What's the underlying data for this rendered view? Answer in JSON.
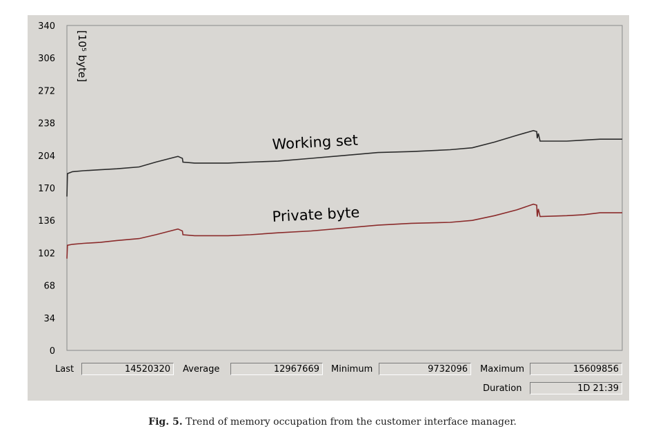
{
  "chart_data": {
    "type": "line",
    "y_unit_label": "[10⁵ byte]",
    "y_ticks": [
      0,
      34,
      68,
      102,
      136,
      170,
      204,
      238,
      272,
      306,
      340
    ],
    "ylim": [
      0,
      340
    ],
    "x_range": [
      0,
      100
    ],
    "grid": false,
    "series": [
      {
        "name": "Working set",
        "color": "#2a2a2a",
        "points": [
          [
            0,
            161
          ],
          [
            0.1,
            185
          ],
          [
            1,
            187
          ],
          [
            3,
            188
          ],
          [
            6,
            189
          ],
          [
            9,
            190
          ],
          [
            13,
            192
          ],
          [
            16,
            197
          ],
          [
            20,
            203
          ],
          [
            20.8,
            201
          ],
          [
            20.9,
            197
          ],
          [
            23,
            196
          ],
          [
            29,
            196
          ],
          [
            33,
            197
          ],
          [
            38,
            198
          ],
          [
            44,
            201
          ],
          [
            50,
            204
          ],
          [
            56,
            207
          ],
          [
            62,
            208
          ],
          [
            69,
            210
          ],
          [
            73,
            212
          ],
          [
            77,
            218
          ],
          [
            81,
            225
          ],
          [
            84,
            230
          ],
          [
            84.6,
            229
          ],
          [
            84.7,
            222
          ],
          [
            84.9,
            227
          ],
          [
            85.2,
            219
          ],
          [
            90,
            219
          ],
          [
            93,
            220
          ],
          [
            96,
            221
          ],
          [
            100,
            221
          ]
        ]
      },
      {
        "name": "Private byte",
        "color": "#8a2a2a",
        "points": [
          [
            0,
            96
          ],
          [
            0.1,
            110
          ],
          [
            1,
            111
          ],
          [
            3,
            112
          ],
          [
            6,
            113
          ],
          [
            9,
            115
          ],
          [
            13,
            117
          ],
          [
            16,
            121
          ],
          [
            20,
            127
          ],
          [
            20.8,
            125
          ],
          [
            20.9,
            121
          ],
          [
            23,
            120
          ],
          [
            29,
            120
          ],
          [
            33,
            121
          ],
          [
            38,
            123
          ],
          [
            44,
            125
          ],
          [
            50,
            128
          ],
          [
            56,
            131
          ],
          [
            62,
            133
          ],
          [
            69,
            134
          ],
          [
            73,
            136
          ],
          [
            77,
            141
          ],
          [
            81,
            147
          ],
          [
            84,
            153
          ],
          [
            84.6,
            152
          ],
          [
            84.7,
            140
          ],
          [
            84.9,
            148
          ],
          [
            85.2,
            140
          ],
          [
            90,
            141
          ],
          [
            93,
            142
          ],
          [
            96,
            144
          ],
          [
            100,
            144
          ]
        ]
      }
    ]
  },
  "stats": {
    "last_label": "Last",
    "last_value": "14520320",
    "average_label": "Average",
    "average_value": "12967669",
    "minimum_label": "Minimum",
    "minimum_value": "9732096",
    "maximum_label": "Maximum",
    "maximum_value": "15609856",
    "duration_label": "Duration",
    "duration_value": "1D 21:39"
  },
  "caption": {
    "prefix": "Fig. 5.",
    "text": " Trend of memory occupation from the customer interface manager."
  }
}
